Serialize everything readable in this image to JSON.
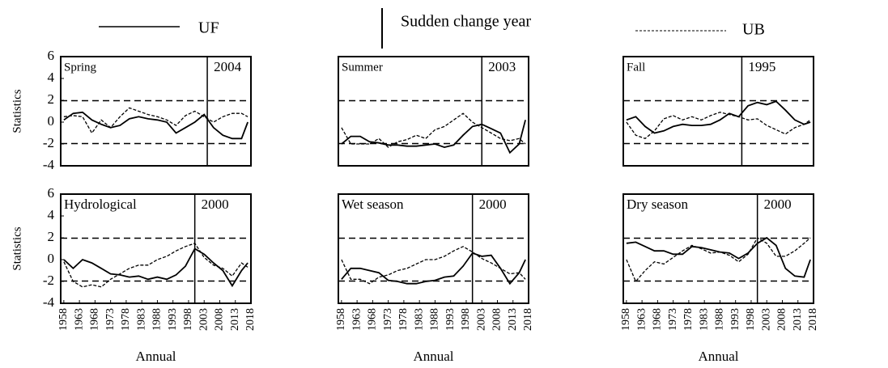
{
  "legend_change_label": "Sudden change year",
  "chart_data": [
    {
      "type": "line",
      "title": "Spring",
      "ylabel": "Statistics",
      "xlim": [
        1957,
        2018
      ],
      "ylim": [
        -4,
        6
      ],
      "yticks": [
        -4,
        -2,
        0,
        2,
        4,
        6
      ],
      "thresholds": [
        1.96,
        -1.96
      ],
      "change_year": 2004,
      "x": [
        1958,
        1961,
        1964,
        1967,
        1970,
        1973,
        1976,
        1979,
        1982,
        1985,
        1988,
        1991,
        1994,
        1997,
        2000,
        2003,
        2006,
        2009,
        2012,
        2015,
        2017
      ],
      "series": [
        {
          "name": "UF",
          "color": "#000000",
          "line_style": "solid",
          "values": [
            0.2,
            0.8,
            0.9,
            0.2,
            -0.2,
            -0.5,
            -0.3,
            0.3,
            0.5,
            0.3,
            0.2,
            0,
            -1.0,
            -0.5,
            0,
            0.7,
            -0.5,
            -1.2,
            -1.5,
            -1.5,
            0
          ]
        },
        {
          "name": "UB",
          "color": "#000000",
          "line_style": "dashed",
          "values": [
            0.5,
            0.6,
            0.5,
            -1.0,
            0.2,
            -0.5,
            0.5,
            1.3,
            1.0,
            0.7,
            0.5,
            0.2,
            -0.3,
            0.6,
            1.0,
            0.5,
            0,
            0.5,
            0.8,
            0.8,
            0.5
          ]
        }
      ]
    },
    {
      "type": "line",
      "title": "Summer",
      "xlim": [
        1957,
        2018
      ],
      "ylim": [
        -4,
        6
      ],
      "thresholds": [
        1.96,
        -1.96
      ],
      "change_year": 2003,
      "x": [
        1958,
        1961,
        1964,
        1967,
        1970,
        1973,
        1976,
        1979,
        1982,
        1985,
        1988,
        1991,
        1994,
        1997,
        2000,
        2003,
        2006,
        2009,
        2012,
        2015,
        2017
      ],
      "series": [
        {
          "name": "UF",
          "color": "#000000",
          "line_style": "solid",
          "values": [
            -2,
            -1.3,
            -1.3,
            -1.8,
            -1.9,
            -2.1,
            -2.1,
            -2.2,
            -2.2,
            -2.1,
            -2.0,
            -2.3,
            -2.1,
            -1.2,
            -0.4,
            -0.2,
            -0.6,
            -1.0,
            -2.8,
            -2,
            0.2
          ]
        },
        {
          "name": "UB",
          "color": "#000000",
          "line_style": "dashed",
          "values": [
            -0.5,
            -2,
            -2,
            -2,
            -1.5,
            -2.3,
            -1.8,
            -1.6,
            -1.2,
            -1.5,
            -0.7,
            -0.4,
            0.2,
            0.8,
            0,
            -0.5,
            -1,
            -1.5,
            -1.7,
            -1.5,
            -2
          ]
        }
      ]
    },
    {
      "type": "line",
      "title": "Fall",
      "xlim": [
        1957,
        2018
      ],
      "ylim": [
        -4,
        6
      ],
      "thresholds": [
        1.96,
        -1.96
      ],
      "change_year": 1995,
      "x": [
        1958,
        1961,
        1964,
        1967,
        1970,
        1973,
        1976,
        1979,
        1982,
        1985,
        1988,
        1991,
        1994,
        1997,
        2000,
        2003,
        2006,
        2009,
        2012,
        2015,
        2017
      ],
      "series": [
        {
          "name": "UF",
          "color": "#000000",
          "line_style": "solid",
          "values": [
            0.2,
            0.5,
            -0.4,
            -1.0,
            -0.8,
            -0.4,
            -0.2,
            -0.3,
            -0.3,
            -0.2,
            0.2,
            0.8,
            0.5,
            1.5,
            1.8,
            1.6,
            1.9,
            1.1,
            0.2,
            -0.2,
            0
          ]
        },
        {
          "name": "UB",
          "color": "#000000",
          "line_style": "dashed",
          "values": [
            0,
            -1.2,
            -1.5,
            -0.8,
            0.3,
            0.6,
            0.2,
            0.5,
            0.2,
            0.6,
            0.9,
            0.7,
            0.5,
            0.2,
            0.3,
            -0.3,
            -0.7,
            -1.1,
            -0.5,
            -0.2,
            0.2
          ]
        }
      ]
    },
    {
      "type": "line",
      "title": "Hydrological",
      "ylabel": "Statistics",
      "xlabel": "Annual",
      "xlim": [
        1957,
        2018
      ],
      "ylim": [
        -4,
        6
      ],
      "yticks": [
        -4,
        -2,
        0,
        2,
        4,
        6
      ],
      "xticks": [
        1958,
        1963,
        1968,
        1973,
        1978,
        1983,
        1988,
        1993,
        1998,
        2003,
        2008,
        2013,
        2018
      ],
      "thresholds": [
        1.96,
        -1.96
      ],
      "change_year": 2000,
      "x": [
        1958,
        1961,
        1964,
        1967,
        1970,
        1973,
        1976,
        1979,
        1982,
        1985,
        1988,
        1991,
        1994,
        1997,
        2000,
        2003,
        2006,
        2009,
        2012,
        2015,
        2017
      ],
      "series": [
        {
          "name": "UF",
          "color": "#000000",
          "line_style": "solid",
          "values": [
            0,
            -0.8,
            0,
            -0.3,
            -0.8,
            -1.3,
            -1.4,
            -1.6,
            -1.5,
            -1.8,
            -1.6,
            -1.8,
            -1.4,
            -0.6,
            1.0,
            0.5,
            -0.3,
            -1.0,
            -2.4,
            -1.0,
            -0.3
          ]
        },
        {
          "name": "UB",
          "color": "#000000",
          "line_style": "dashed",
          "values": [
            -0.2,
            -2.0,
            -2.5,
            -2.3,
            -2.5,
            -1.8,
            -1.3,
            -0.8,
            -0.5,
            -0.5,
            0,
            0.3,
            0.8,
            1.2,
            1.5,
            0.2,
            -0.5,
            -0.8,
            -1.5,
            -0.3,
            -0.7
          ]
        }
      ]
    },
    {
      "type": "line",
      "title": "Wet season",
      "xlabel": "Annual",
      "xlim": [
        1957,
        2018
      ],
      "ylim": [
        -4,
        6
      ],
      "xticks": [
        1958,
        1963,
        1968,
        1973,
        1978,
        1983,
        1988,
        1993,
        1998,
        2003,
        2008,
        2013,
        2018
      ],
      "thresholds": [
        1.96,
        -1.96
      ],
      "change_year": 2000,
      "x": [
        1958,
        1961,
        1964,
        1967,
        1970,
        1973,
        1976,
        1979,
        1982,
        1985,
        1988,
        1991,
        1994,
        1997,
        2000,
        2003,
        2006,
        2009,
        2012,
        2015,
        2017
      ],
      "series": [
        {
          "name": "UF",
          "color": "#000000",
          "line_style": "solid",
          "values": [
            -1.8,
            -0.8,
            -0.8,
            -1.0,
            -1.2,
            -1.9,
            -2.0,
            -2.2,
            -2.2,
            -2.0,
            -1.9,
            -1.6,
            -1.5,
            -0.6,
            0.6,
            0.3,
            0.4,
            -0.8,
            -2.2,
            -1.2,
            0
          ]
        },
        {
          "name": "UB",
          "color": "#000000",
          "line_style": "dashed",
          "values": [
            0,
            -1.8,
            -1.8,
            -2.2,
            -1.6,
            -1.4,
            -1.0,
            -0.8,
            -0.4,
            0,
            0,
            0.3,
            0.8,
            1.2,
            0.7,
            0.1,
            -0.3,
            -0.8,
            -1.3,
            -1.2,
            -1.8
          ]
        }
      ]
    },
    {
      "type": "line",
      "title": "Dry season",
      "xlabel": "Annual",
      "xlim": [
        1957,
        2018
      ],
      "ylim": [
        -4,
        6
      ],
      "xticks": [
        1958,
        1963,
        1968,
        1973,
        1978,
        1983,
        1988,
        1993,
        1998,
        2003,
        2008,
        2013,
        2018
      ],
      "thresholds": [
        1.96,
        -1.96
      ],
      "change_year": 2000,
      "x": [
        1958,
        1961,
        1964,
        1967,
        1970,
        1973,
        1976,
        1979,
        1982,
        1985,
        1988,
        1991,
        1994,
        1997,
        2000,
        2003,
        2006,
        2009,
        2012,
        2015,
        2017
      ],
      "series": [
        {
          "name": "UF",
          "color": "#000000",
          "line_style": "solid",
          "values": [
            1.5,
            1.6,
            1.2,
            0.8,
            0.8,
            0.5,
            0.5,
            1.2,
            1.1,
            0.9,
            0.7,
            0.6,
            0.1,
            0.6,
            1.5,
            2.0,
            1.3,
            -0.8,
            -1.5,
            -1.6,
            0
          ]
        },
        {
          "name": "UB",
          "color": "#000000",
          "line_style": "dashed",
          "values": [
            0,
            -2.0,
            -1.0,
            -0.2,
            -0.4,
            0.2,
            0.8,
            1.3,
            1.0,
            0.6,
            0.7,
            0.4,
            -0.2,
            0.5,
            2.0,
            1.5,
            0.3,
            0.3,
            0.8,
            1.5,
            2.0
          ]
        }
      ]
    }
  ]
}
